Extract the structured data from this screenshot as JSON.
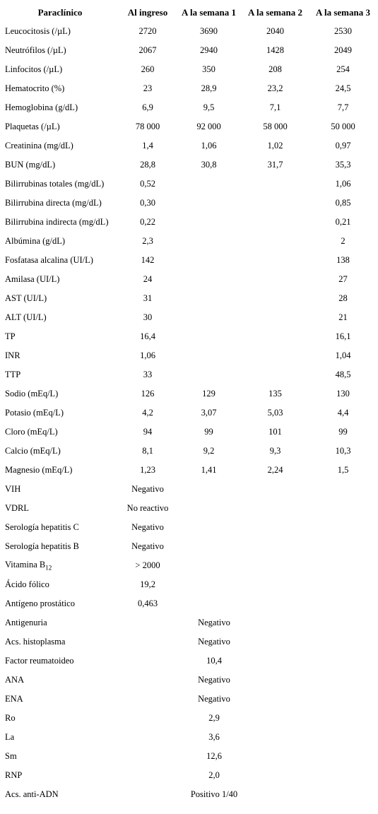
{
  "headers": [
    "Paraclínico",
    "Al ingreso",
    "A la semana 1",
    "A la semana 2",
    "A la semana 3"
  ],
  "rows": [
    {
      "label": "Leucocitosis (/µL)",
      "values": [
        "2720",
        "3690",
        "2040",
        "2530"
      ]
    },
    {
      "label": "Neutrófilos (/µL)",
      "values": [
        "2067",
        "2940",
        "1428",
        "2049"
      ]
    },
    {
      "label": "Linfocitos (/µL)",
      "values": [
        "260",
        "350",
        "208",
        "254"
      ]
    },
    {
      "label": "Hematocrito (%)",
      "values": [
        "23",
        "28,9",
        "23,2",
        "24,5"
      ]
    },
    {
      "label": "Hemoglobina (g/dL)",
      "values": [
        "6,9",
        "9,5",
        "7,1",
        "7,7"
      ]
    },
    {
      "label": "Plaquetas (/µL)",
      "values": [
        "78 000",
        "92 000",
        "58 000",
        "50 000"
      ]
    },
    {
      "label": "Creatinina (mg/dL)",
      "values": [
        "1,4",
        "1,06",
        "1,02",
        "0,97"
      ]
    },
    {
      "label": "BUN (mg/dL)",
      "values": [
        "28,8",
        "30,8",
        "31,7",
        "35,3"
      ]
    },
    {
      "label": "Bilirrubinas totales (mg/dL)",
      "values": [
        "0,52",
        "",
        "",
        "1,06"
      ]
    },
    {
      "label": "Bilirrubina directa (mg/dL)",
      "values": [
        "0,30",
        "",
        "",
        "0,85"
      ]
    },
    {
      "label": "Bilirrubina indirecta (mg/dL)",
      "values": [
        "0,22",
        "",
        "",
        "0,21"
      ]
    },
    {
      "label": "Albúmina (g/dL)",
      "values": [
        "2,3",
        "",
        "",
        "2"
      ]
    },
    {
      "label": "Fosfatasa alcalina (UI/L)",
      "values": [
        "142",
        "",
        "",
        "138"
      ]
    },
    {
      "label": "Amilasa (UI/L)",
      "values": [
        "24",
        "",
        "",
        "27"
      ]
    },
    {
      "label": "AST (UI/L)",
      "values": [
        "31",
        "",
        "",
        "28"
      ]
    },
    {
      "label": "ALT (UI/L)",
      "values": [
        "30",
        "",
        "",
        "21"
      ]
    },
    {
      "label": "TP",
      "values": [
        "16,4",
        "",
        "",
        "16,1"
      ]
    },
    {
      "label": "INR",
      "values": [
        "1,06",
        "",
        "",
        "1,04"
      ]
    },
    {
      "label": "TTP",
      "values": [
        "33",
        "",
        "",
        "48,5"
      ]
    },
    {
      "label": "Sodio (mEq/L)",
      "values": [
        "126",
        "129",
        "135",
        "130"
      ]
    },
    {
      "label": "Potasio (mEq/L)",
      "values": [
        "4,2",
        "3,07",
        "5,03",
        "4,4"
      ]
    },
    {
      "label": "Cloro (mEq/L)",
      "values": [
        "94",
        "99",
        "101",
        "99"
      ]
    },
    {
      "label": "Calcio (mEq/L)",
      "values": [
        "8,1",
        "9,2",
        "9,3",
        "10,3"
      ]
    },
    {
      "label": "Magnesio (mEq/L)",
      "values": [
        "1,23",
        "1,41",
        "2,24",
        "1,5"
      ]
    },
    {
      "label": "VIH",
      "values": [
        "Negativo",
        "",
        "",
        ""
      ]
    },
    {
      "label": "VDRL",
      "values": [
        "No reactivo",
        "",
        "",
        ""
      ]
    },
    {
      "label": "Serología hepatitis C",
      "values": [
        "Negativo",
        "",
        "",
        ""
      ]
    },
    {
      "label": "Serología hepatitis B",
      "values": [
        "Negativo",
        "",
        "",
        ""
      ]
    },
    {
      "label": "Vitamina B",
      "sub": "12",
      "values": [
        "> 2000",
        "",
        "",
        ""
      ]
    },
    {
      "label": "Ácido fólico",
      "values": [
        "19,2",
        "",
        "",
        ""
      ]
    },
    {
      "label": "Antígeno prostático",
      "values": [
        "0,463",
        "",
        "",
        ""
      ]
    }
  ],
  "span_rows": [
    {
      "label": "Antigenuria",
      "value": "Negativo"
    },
    {
      "label": "Acs. histoplasma",
      "value": "Negativo"
    },
    {
      "label": "Factor reumatoideo",
      "value": "10,4"
    },
    {
      "label": "ANA",
      "value": "Negativo"
    },
    {
      "label": "ENA",
      "value": "Negativo"
    },
    {
      "label": "Ro",
      "value": "2,9"
    },
    {
      "label": "La",
      "value": "3,6"
    },
    {
      "label": "Sm",
      "value": "12,6"
    },
    {
      "label": "RNP",
      "value": "2,0"
    },
    {
      "label": "Acs. anti-ADN",
      "value": "Positivo 1/40"
    }
  ]
}
